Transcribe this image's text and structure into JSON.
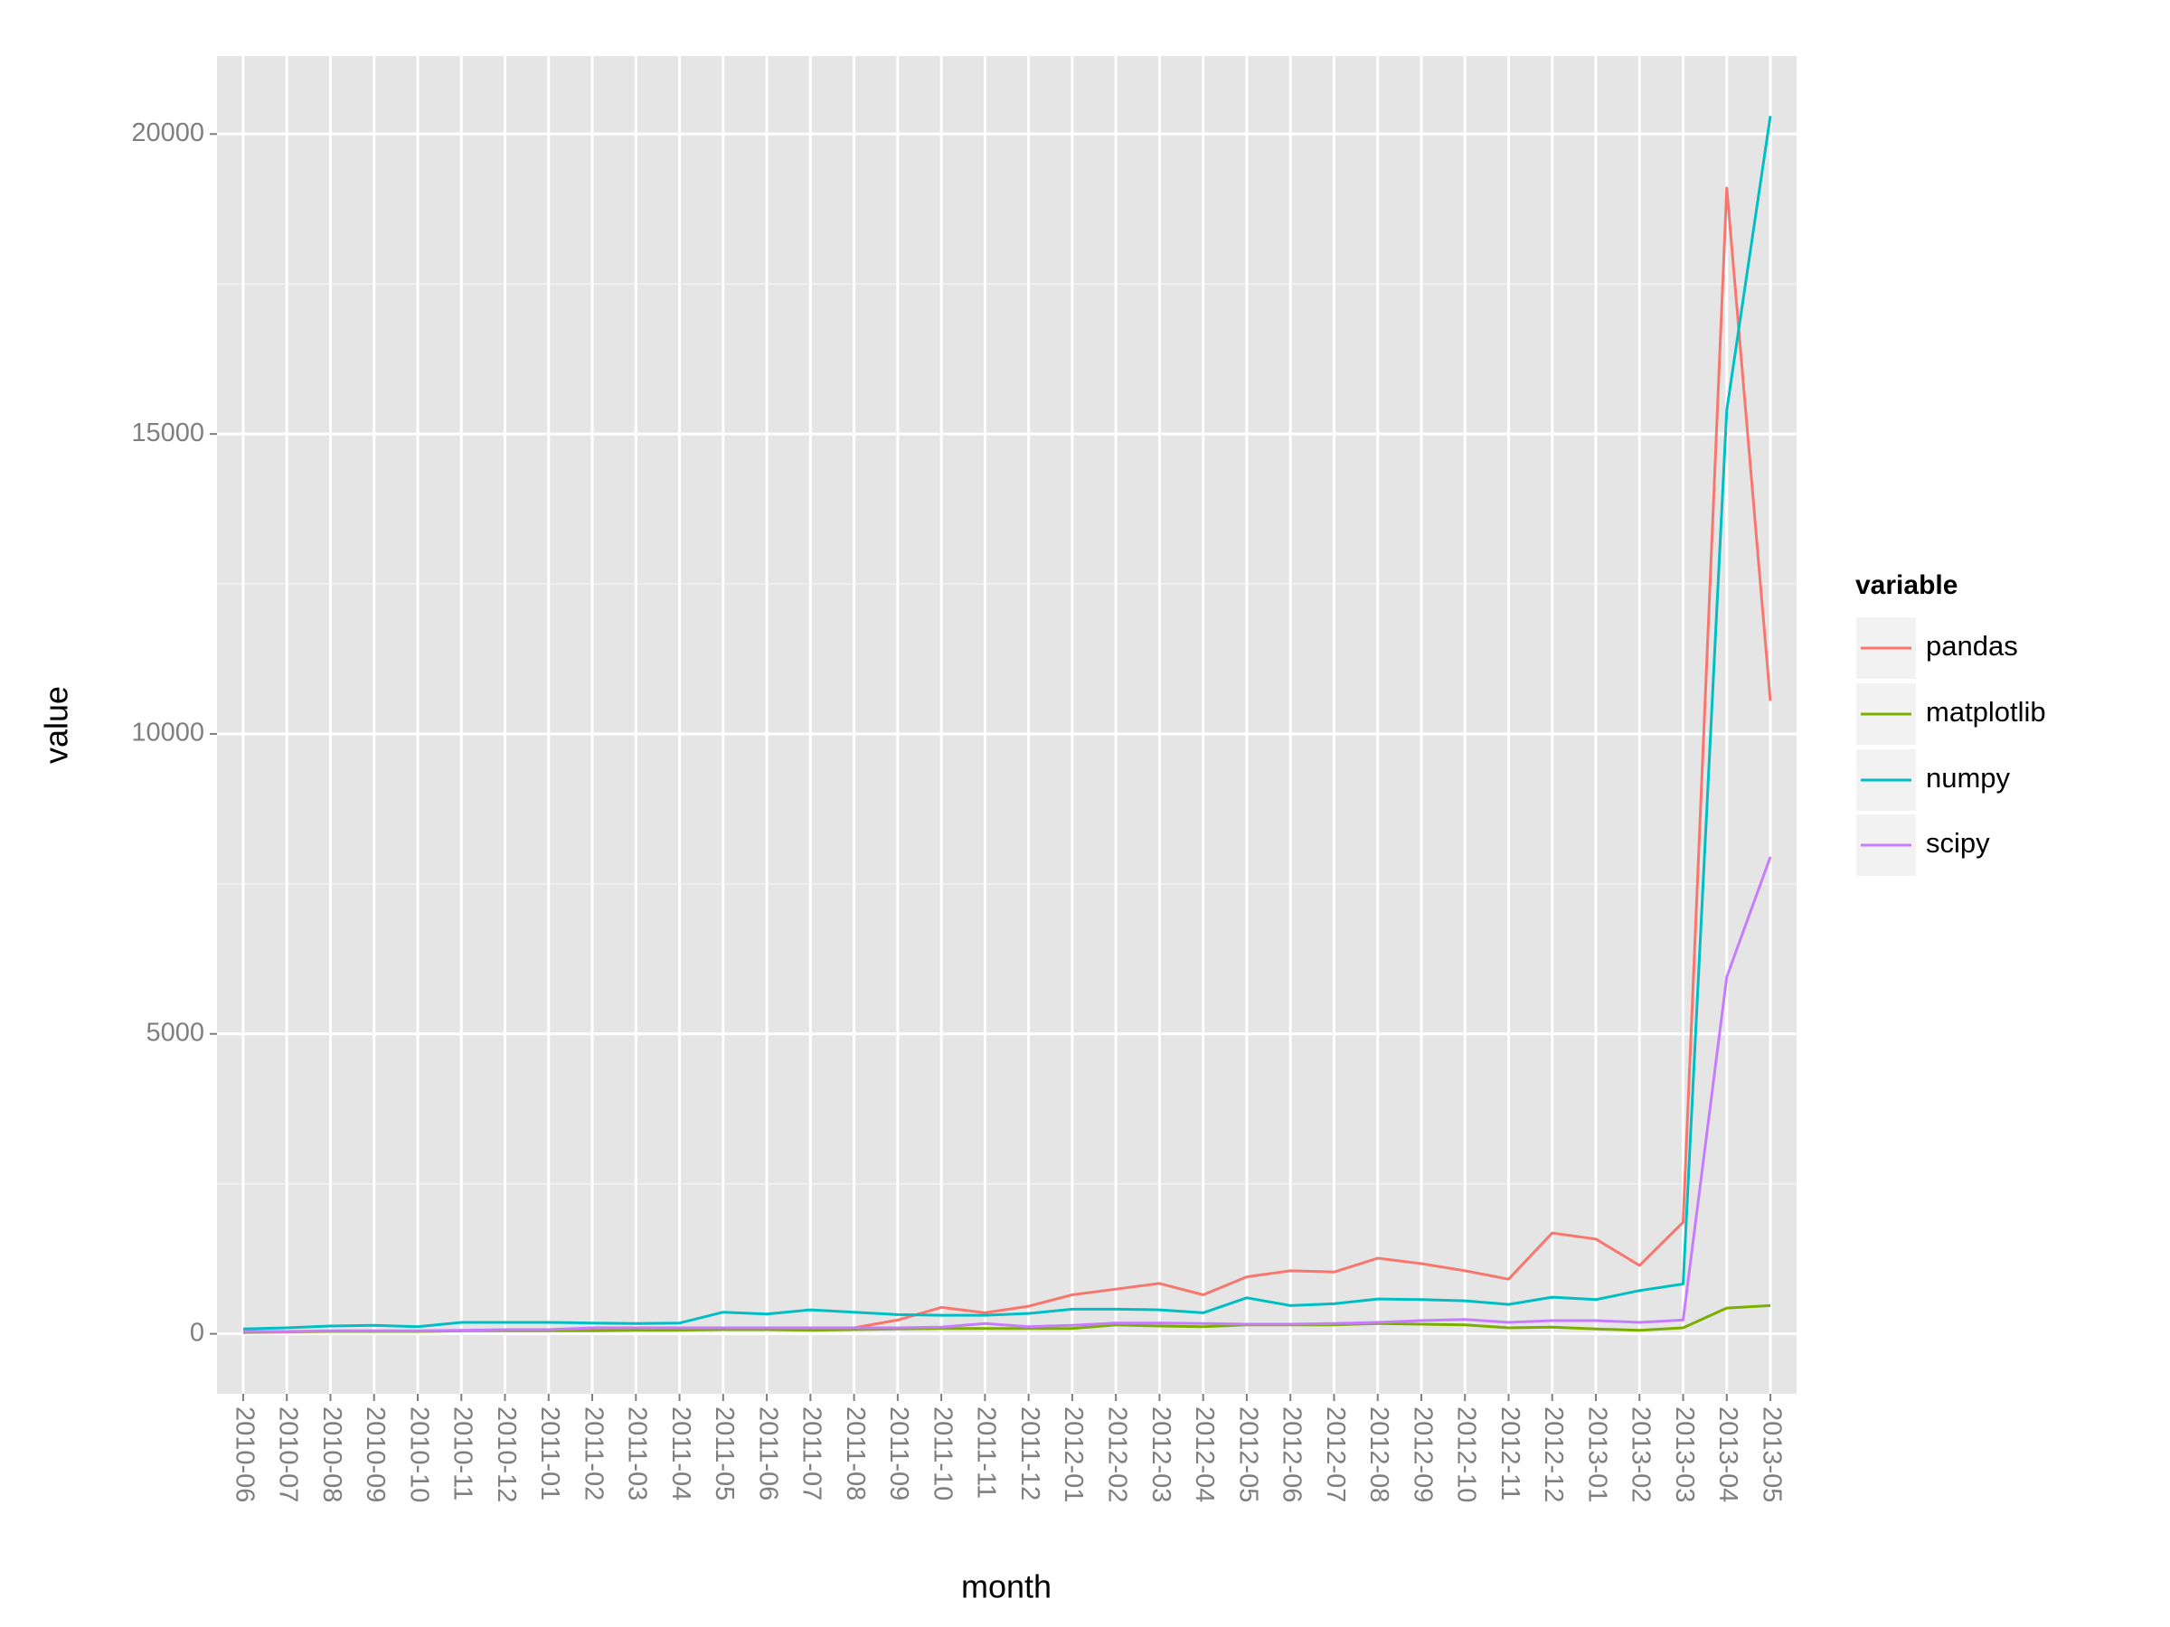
{
  "chart_data": {
    "type": "line",
    "x_label": "month",
    "y_label": "value",
    "legend_title": "variable",
    "legend_position": "right",
    "grid": true,
    "categories": [
      "2010-06",
      "2010-07",
      "2010-08",
      "2010-09",
      "2010-10",
      "2010-11",
      "2010-12",
      "2011-01",
      "2011-02",
      "2011-03",
      "2011-04",
      "2011-05",
      "2011-06",
      "2011-07",
      "2011-08",
      "2011-09",
      "2011-10",
      "2011-11",
      "2011-12",
      "2012-01",
      "2012-02",
      "2012-03",
      "2012-04",
      "2012-05",
      "2012-06",
      "2012-07",
      "2012-08",
      "2012-09",
      "2012-10",
      "2012-11",
      "2012-12",
      "2013-01",
      "2013-02",
      "2013-03",
      "2013-04",
      "2013-05"
    ],
    "ylim": [
      -1000,
      21300
    ],
    "yticks": [
      0,
      5000,
      10000,
      15000,
      20000
    ],
    "minor_yticks": [
      2500,
      7500,
      12500,
      17500
    ],
    "series": [
      {
        "name": "pandas",
        "color": "#F8766D",
        "values": [
          20,
          30,
          40,
          40,
          40,
          50,
          60,
          60,
          70,
          70,
          80,
          80,
          80,
          80,
          100,
          230,
          440,
          350,
          460,
          650,
          745,
          840,
          650,
          950,
          1050,
          1030,
          1260,
          1170,
          1050,
          910,
          1680,
          1580,
          1140,
          1860,
          19100,
          10550
        ]
      },
      {
        "name": "matplotlib",
        "color": "#7CAE00",
        "values": [
          30,
          40,
          40,
          40,
          40,
          50,
          50,
          50,
          50,
          60,
          60,
          70,
          70,
          60,
          70,
          80,
          90,
          90,
          90,
          90,
          150,
          130,
          120,
          150,
          150,
          150,
          170,
          160,
          150,
          100,
          110,
          80,
          60,
          100,
          430,
          470
        ]
      },
      {
        "name": "numpy",
        "color": "#00BFC4",
        "values": [
          80,
          100,
          130,
          140,
          120,
          190,
          190,
          190,
          180,
          170,
          180,
          360,
          330,
          400,
          360,
          320,
          310,
          310,
          340,
          410,
          410,
          400,
          350,
          600,
          470,
          500,
          580,
          570,
          550,
          490,
          610,
          570,
          720,
          830,
          15400,
          20300
        ]
      },
      {
        "name": "scipy",
        "color": "#C77CFF",
        "values": [
          40,
          40,
          50,
          50,
          50,
          60,
          70,
          70,
          100,
          100,
          100,
          100,
          100,
          100,
          100,
          100,
          110,
          170,
          120,
          140,
          180,
          180,
          170,
          160,
          160,
          170,
          190,
          220,
          240,
          190,
          220,
          220,
          190,
          230,
          5950,
          7950
        ]
      }
    ]
  }
}
